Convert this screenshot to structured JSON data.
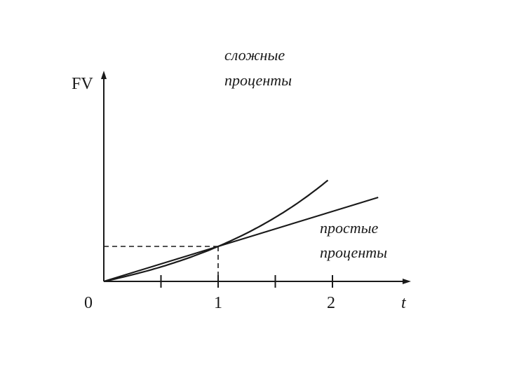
{
  "chart_data": {
    "type": "line",
    "xlabel": "t",
    "ylabel": "FV",
    "origin_label": "0",
    "x_ticks": [
      0.5,
      1,
      1.5,
      2
    ],
    "x_tick_labels": [
      {
        "x": 1,
        "label": "1"
      },
      {
        "x": 2,
        "label": "2"
      }
    ],
    "xlim": [
      0,
      2.65
    ],
    "ylim": [
      0,
      5.9
    ],
    "grid": false,
    "legend": "none",
    "series": [
      {
        "name": "простые проценты",
        "label_lines": [
          "простые",
          "проценты"
        ],
        "function": "simple",
        "x_range": [
          0,
          2.4
        ],
        "points": [
          [
            0,
            0
          ],
          [
            1,
            1
          ],
          [
            2,
            2
          ],
          [
            2.4,
            2.4
          ]
        ]
      },
      {
        "name": "сложные проценты",
        "label_lines": [
          "сложные",
          "проценты"
        ],
        "function": "compound",
        "x_range": [
          0,
          1.96
        ],
        "points": [
          [
            0,
            0
          ],
          [
            0.5,
            0.414
          ],
          [
            1,
            1
          ],
          [
            1.5,
            1.83
          ],
          [
            1.96,
            3.0
          ]
        ]
      }
    ],
    "reference_point": {
      "x": 1,
      "y": 1
    }
  }
}
